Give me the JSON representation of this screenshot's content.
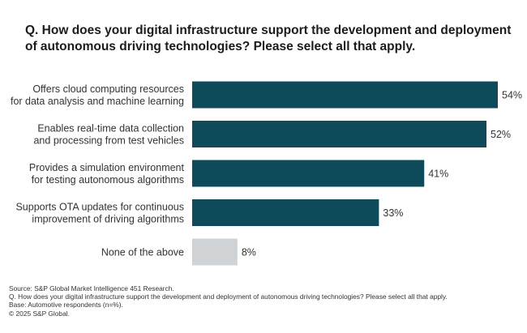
{
  "title": "Q. How does your digital infrastructure support the development and deployment of autonomous driving technologies? Please select all that apply.",
  "footer": {
    "source": "Source: S&P Global Market Intelligence 451 Research.",
    "question": "Q. How does your digital infrastructure support the development and deployment of autonomous driving technologies? Please select all that apply.",
    "base": "Base: Automotive respondents (n=%).",
    "copyright": "© 2025 S&P Global."
  },
  "colors": {
    "primary": "#0e4a5a",
    "highlight_none": "#d0d3d5",
    "label": "#333333"
  },
  "chart_data": {
    "type": "bar",
    "orientation": "horizontal",
    "categories": [
      [
        "Offers cloud computing resources",
        "for data analysis and machine learning"
      ],
      [
        "Enables real-time data collection",
        "and processing from test vehicles"
      ],
      [
        "Provides a simulation environment",
        "for testing autonomous algorithms"
      ],
      [
        "Supports OTA updates for continuous",
        "improvement of driving algorithms"
      ],
      [
        "None of the above"
      ]
    ],
    "values": [
      54,
      52,
      41,
      33,
      8
    ],
    "value_labels": [
      "54%",
      "52%",
      "41%",
      "33%",
      "8%"
    ],
    "bar_colors": [
      "#0e4a5a",
      "#0e4a5a",
      "#0e4a5a",
      "#0e4a5a",
      "#d0d3d5"
    ],
    "xlim": [
      0,
      54
    ],
    "grid": false,
    "legend": "none"
  }
}
